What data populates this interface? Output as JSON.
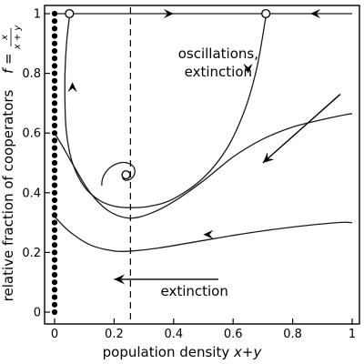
{
  "chart_data": {
    "type": "line",
    "xlabel": "population density",
    "xlabel_math": "x+y",
    "ylabel": "relative fraction of cooperators",
    "ylabel_math": "f =",
    "ylabel_frac_num": "x",
    "ylabel_frac_den": "x + y",
    "xlim": [
      0,
      1
    ],
    "ylim": [
      0,
      1
    ],
    "x_ticks": [
      {
        "value": 0,
        "label": "0"
      },
      {
        "value": 0.2,
        "label": "0.2"
      },
      {
        "value": 0.4,
        "label": "0.4"
      },
      {
        "value": 0.6,
        "label": "0.6"
      },
      {
        "value": 0.8,
        "label": "0.8"
      },
      {
        "value": 1,
        "label": "1"
      }
    ],
    "y_ticks": [
      {
        "value": 0,
        "label": "0"
      },
      {
        "value": 0.2,
        "label": "0.2"
      },
      {
        "value": 0.4,
        "label": "0.4"
      },
      {
        "value": 0.6,
        "label": "0.6"
      },
      {
        "value": 0.8,
        "label": "0.8"
      },
      {
        "value": 1,
        "label": "1"
      }
    ],
    "grid": false,
    "annotations": [
      {
        "text": "oscillations,",
        "x": 0.55,
        "y": 0.85
      },
      {
        "text": "extinction",
        "x": 0.55,
        "y": 0.79
      },
      {
        "text": "extinction",
        "x": 0.47,
        "y": 0.055
      }
    ],
    "vertical_line": {
      "x": 0.255,
      "style": "dashed"
    },
    "fixed_points": [
      {
        "x": 0.05,
        "y": 1.0,
        "type": "open"
      },
      {
        "x": 0.71,
        "y": 1.0,
        "type": "open"
      },
      {
        "x": 0.24,
        "y": 0.46,
        "type": "open"
      }
    ],
    "filled_points_x": 0,
    "filled_points_y": [
      0,
      0.025,
      0.05,
      0.075,
      0.1,
      0.125,
      0.15,
      0.175,
      0.2,
      0.225,
      0.25,
      0.275,
      0.3,
      0.325,
      0.35,
      0.375,
      0.4,
      0.425,
      0.45,
      0.475,
      0.5,
      0.525,
      0.55,
      0.575,
      0.6,
      0.625,
      0.65,
      0.675,
      0.7,
      0.725,
      0.75,
      0.775,
      0.8,
      0.825,
      0.85,
      0.875,
      0.9,
      0.925,
      0.95,
      0.975,
      1
    ],
    "series": [
      {
        "points": [
          [
            0.0,
            1.0
          ],
          [
            1.0,
            1.0
          ]
        ]
      },
      {
        "points": [
          [
            0.05,
            0.99
          ],
          [
            0.04,
            0.9
          ],
          [
            0.035,
            0.8
          ],
          [
            0.035,
            0.7
          ],
          [
            0.04,
            0.6
          ],
          [
            0.06,
            0.5
          ],
          [
            0.1,
            0.42
          ],
          [
            0.15,
            0.375
          ],
          [
            0.2,
            0.355
          ],
          [
            0.25,
            0.35
          ],
          [
            0.32,
            0.355
          ],
          [
            0.4,
            0.38
          ],
          [
            0.5,
            0.45
          ],
          [
            0.58,
            0.55
          ],
          [
            0.64,
            0.68
          ],
          [
            0.68,
            0.82
          ],
          [
            0.71,
            0.99
          ]
        ]
      },
      {
        "points": [
          [
            0.0,
            0.6
          ],
          [
            0.03,
            0.55
          ],
          [
            0.07,
            0.48
          ],
          [
            0.12,
            0.4
          ],
          [
            0.18,
            0.34
          ],
          [
            0.25,
            0.315
          ],
          [
            0.32,
            0.33
          ],
          [
            0.4,
            0.37
          ],
          [
            0.5,
            0.44
          ],
          [
            0.6,
            0.52
          ],
          [
            0.7,
            0.58
          ],
          [
            0.8,
            0.62
          ],
          [
            0.9,
            0.645
          ],
          [
            0.97,
            0.66
          ],
          [
            1.0,
            0.665
          ]
        ]
      },
      {
        "points": [
          [
            0.0,
            0.32
          ],
          [
            0.05,
            0.27
          ],
          [
            0.12,
            0.225
          ],
          [
            0.2,
            0.205
          ],
          [
            0.26,
            0.205
          ],
          [
            0.35,
            0.215
          ],
          [
            0.5,
            0.24
          ],
          [
            0.65,
            0.265
          ],
          [
            0.8,
            0.285
          ],
          [
            0.95,
            0.3
          ],
          [
            1.0,
            0.3
          ]
        ]
      }
    ],
    "spiral": {
      "center": [
        0.24,
        0.455
      ],
      "rx0": 0.095,
      "ry0": 0.125,
      "decay": 0.32,
      "turns": 4.5
    },
    "direction_arrows": [
      {
        "from": [
          0.96,
          0.73
        ],
        "to": [
          0.7,
          0.5
        ]
      },
      {
        "from": [
          0.55,
          0.11
        ],
        "to": [
          0.2,
          0.11
        ]
      }
    ],
    "flow_markers": [
      {
        "x": 0.4,
        "y": 1.0,
        "dir": "right"
      },
      {
        "x": 0.86,
        "y": 1.0,
        "dir": "left"
      },
      {
        "x": 0.65,
        "y": 0.8,
        "dir": "down"
      },
      {
        "x": 0.06,
        "y": 0.77,
        "dir": "up"
      },
      {
        "x": 0.5,
        "y": 0.26,
        "dir": "left"
      }
    ]
  }
}
